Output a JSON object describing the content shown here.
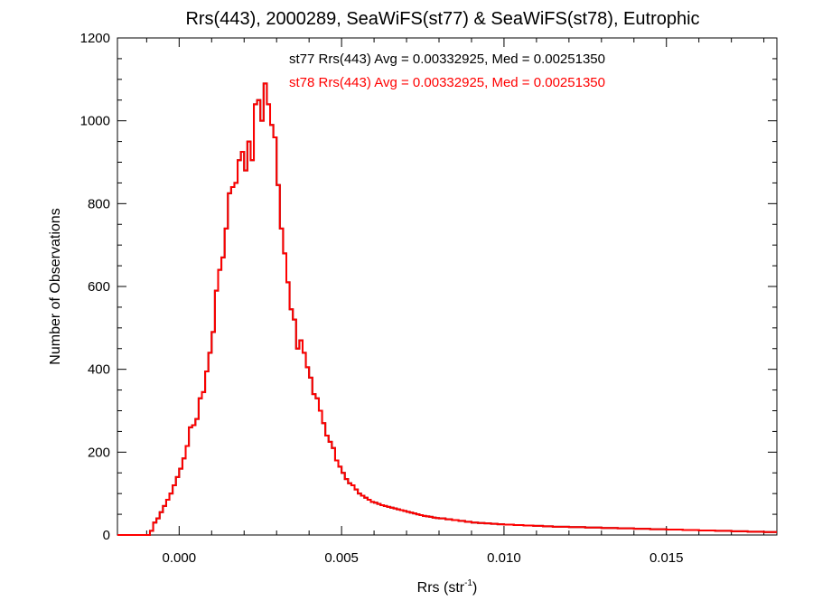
{
  "chart_data": {
    "type": "histogram",
    "title": "Rrs(443), 2000289, SeaWiFS(st77) & SeaWiFS(st78), Eutrophic",
    "xlabel_base": "Rrs (str",
    "xlabel_sup": "-1",
    "xlabel_close": ")",
    "ylabel": "Number of Observations",
    "xlim": [
      -0.0019,
      0.0184
    ],
    "ylim": [
      0,
      1200
    ],
    "xticks": [
      0.0,
      0.005,
      0.01,
      0.015
    ],
    "xtick_labels": [
      "0.000",
      "0.005",
      "0.010",
      "0.015"
    ],
    "yticks": [
      0,
      200,
      400,
      600,
      800,
      1000,
      1200
    ],
    "ytick_labels": [
      "0",
      "200",
      "400",
      "600",
      "800",
      "1000",
      "1200"
    ],
    "annotations": [
      {
        "text": "st77 Rrs(443) Avg = 0.00332925, Med = 0.00251350",
        "color": "#000000"
      },
      {
        "text": "st78 Rrs(443) Avg = 0.00332925, Med = 0.00251350",
        "color": "#ff0000"
      }
    ],
    "series": [
      {
        "name": "st77",
        "color": "#000000",
        "bin_width": 0.0001,
        "points": [
          [
            -0.0019,
            0
          ],
          [
            -0.001,
            0
          ],
          [
            -0.0009,
            10
          ],
          [
            -0.0008,
            30
          ],
          [
            -0.0007,
            40
          ],
          [
            -0.0006,
            55
          ],
          [
            -0.0005,
            70
          ],
          [
            -0.0004,
            85
          ],
          [
            -0.0003,
            100
          ],
          [
            -0.0002,
            120
          ],
          [
            -0.0001,
            140
          ],
          [
            0.0,
            160
          ],
          [
            0.0001,
            185
          ],
          [
            0.0002,
            215
          ],
          [
            0.0003,
            260
          ],
          [
            0.0004,
            265
          ],
          [
            0.0005,
            280
          ],
          [
            0.0006,
            330
          ],
          [
            0.0007,
            345
          ],
          [
            0.0008,
            395
          ],
          [
            0.0009,
            440
          ],
          [
            0.001,
            490
          ],
          [
            0.0011,
            590
          ],
          [
            0.0012,
            640
          ],
          [
            0.0013,
            670
          ],
          [
            0.0014,
            740
          ],
          [
            0.0015,
            825
          ],
          [
            0.0016,
            840
          ],
          [
            0.0017,
            850
          ],
          [
            0.0018,
            905
          ],
          [
            0.0019,
            925
          ],
          [
            0.002,
            880
          ],
          [
            0.0021,
            950
          ],
          [
            0.0022,
            905
          ],
          [
            0.0023,
            1040
          ],
          [
            0.0024,
            1050
          ],
          [
            0.0025,
            1000
          ],
          [
            0.0026,
            1090
          ],
          [
            0.0027,
            1040
          ],
          [
            0.0028,
            990
          ],
          [
            0.0029,
            960
          ],
          [
            0.003,
            845
          ],
          [
            0.0031,
            740
          ],
          [
            0.0032,
            680
          ],
          [
            0.0033,
            610
          ],
          [
            0.0034,
            545
          ],
          [
            0.0035,
            520
          ],
          [
            0.0036,
            450
          ],
          [
            0.0037,
            470
          ],
          [
            0.0038,
            440
          ],
          [
            0.0039,
            405
          ],
          [
            0.004,
            380
          ],
          [
            0.0041,
            340
          ],
          [
            0.0042,
            330
          ],
          [
            0.0043,
            300
          ],
          [
            0.0044,
            270
          ],
          [
            0.0045,
            240
          ],
          [
            0.0046,
            225
          ],
          [
            0.0047,
            210
          ],
          [
            0.0048,
            180
          ],
          [
            0.0049,
            165
          ],
          [
            0.005,
            150
          ],
          [
            0.0051,
            135
          ],
          [
            0.0052,
            125
          ],
          [
            0.0053,
            120
          ],
          [
            0.0054,
            110
          ],
          [
            0.0055,
            100
          ],
          [
            0.0056,
            95
          ],
          [
            0.0057,
            90
          ],
          [
            0.0058,
            85
          ],
          [
            0.0059,
            80
          ],
          [
            0.006,
            78
          ],
          [
            0.0061,
            75
          ],
          [
            0.0062,
            72
          ],
          [
            0.0063,
            70
          ],
          [
            0.0064,
            68
          ],
          [
            0.0065,
            66
          ],
          [
            0.0066,
            64
          ],
          [
            0.0067,
            62
          ],
          [
            0.0068,
            60
          ],
          [
            0.0069,
            58
          ],
          [
            0.007,
            56
          ],
          [
            0.0071,
            54
          ],
          [
            0.0072,
            52
          ],
          [
            0.0073,
            50
          ],
          [
            0.0074,
            48
          ],
          [
            0.0075,
            46
          ],
          [
            0.0076,
            45
          ],
          [
            0.0077,
            44
          ],
          [
            0.0078,
            42
          ],
          [
            0.0079,
            41
          ],
          [
            0.008,
            40
          ],
          [
            0.0082,
            38
          ],
          [
            0.0084,
            36
          ],
          [
            0.0086,
            34
          ],
          [
            0.0088,
            32
          ],
          [
            0.009,
            30
          ],
          [
            0.0092,
            29
          ],
          [
            0.0094,
            28
          ],
          [
            0.0096,
            27
          ],
          [
            0.0098,
            26
          ],
          [
            0.01,
            25
          ],
          [
            0.0103,
            24
          ],
          [
            0.0106,
            23
          ],
          [
            0.0109,
            22
          ],
          [
            0.0112,
            21
          ],
          [
            0.0115,
            20
          ],
          [
            0.012,
            19
          ],
          [
            0.0125,
            18
          ],
          [
            0.013,
            17
          ],
          [
            0.0135,
            16
          ],
          [
            0.014,
            15
          ],
          [
            0.0145,
            14
          ],
          [
            0.015,
            13
          ],
          [
            0.0155,
            12
          ],
          [
            0.016,
            11
          ],
          [
            0.0165,
            10
          ],
          [
            0.017,
            9
          ],
          [
            0.0175,
            8
          ],
          [
            0.018,
            7
          ],
          [
            0.0184,
            7
          ]
        ]
      },
      {
        "name": "st78",
        "color": "#ff0000",
        "bin_width": 0.0001,
        "points": [
          [
            -0.0019,
            0
          ],
          [
            -0.001,
            0
          ],
          [
            -0.0009,
            10
          ],
          [
            -0.0008,
            30
          ],
          [
            -0.0007,
            40
          ],
          [
            -0.0006,
            55
          ],
          [
            -0.0005,
            70
          ],
          [
            -0.0004,
            85
          ],
          [
            -0.0003,
            100
          ],
          [
            -0.0002,
            120
          ],
          [
            -0.0001,
            140
          ],
          [
            0.0,
            160
          ],
          [
            0.0001,
            185
          ],
          [
            0.0002,
            215
          ],
          [
            0.0003,
            260
          ],
          [
            0.0004,
            265
          ],
          [
            0.0005,
            280
          ],
          [
            0.0006,
            330
          ],
          [
            0.0007,
            345
          ],
          [
            0.0008,
            395
          ],
          [
            0.0009,
            440
          ],
          [
            0.001,
            490
          ],
          [
            0.0011,
            590
          ],
          [
            0.0012,
            640
          ],
          [
            0.0013,
            670
          ],
          [
            0.0014,
            740
          ],
          [
            0.0015,
            825
          ],
          [
            0.0016,
            840
          ],
          [
            0.0017,
            850
          ],
          [
            0.0018,
            905
          ],
          [
            0.0019,
            925
          ],
          [
            0.002,
            880
          ],
          [
            0.0021,
            950
          ],
          [
            0.0022,
            905
          ],
          [
            0.0023,
            1040
          ],
          [
            0.0024,
            1050
          ],
          [
            0.0025,
            1000
          ],
          [
            0.0026,
            1090
          ],
          [
            0.0027,
            1040
          ],
          [
            0.0028,
            990
          ],
          [
            0.0029,
            960
          ],
          [
            0.003,
            845
          ],
          [
            0.0031,
            740
          ],
          [
            0.0032,
            680
          ],
          [
            0.0033,
            610
          ],
          [
            0.0034,
            545
          ],
          [
            0.0035,
            520
          ],
          [
            0.0036,
            450
          ],
          [
            0.0037,
            470
          ],
          [
            0.0038,
            440
          ],
          [
            0.0039,
            405
          ],
          [
            0.004,
            380
          ],
          [
            0.0041,
            340
          ],
          [
            0.0042,
            330
          ],
          [
            0.0043,
            300
          ],
          [
            0.0044,
            270
          ],
          [
            0.0045,
            240
          ],
          [
            0.0046,
            225
          ],
          [
            0.0047,
            210
          ],
          [
            0.0048,
            180
          ],
          [
            0.0049,
            165
          ],
          [
            0.005,
            150
          ],
          [
            0.0051,
            135
          ],
          [
            0.0052,
            125
          ],
          [
            0.0053,
            120
          ],
          [
            0.0054,
            110
          ],
          [
            0.0055,
            100
          ],
          [
            0.0056,
            95
          ],
          [
            0.0057,
            90
          ],
          [
            0.0058,
            85
          ],
          [
            0.0059,
            80
          ],
          [
            0.006,
            78
          ],
          [
            0.0061,
            75
          ],
          [
            0.0062,
            72
          ],
          [
            0.0063,
            70
          ],
          [
            0.0064,
            68
          ],
          [
            0.0065,
            66
          ],
          [
            0.0066,
            64
          ],
          [
            0.0067,
            62
          ],
          [
            0.0068,
            60
          ],
          [
            0.0069,
            58
          ],
          [
            0.007,
            56
          ],
          [
            0.0071,
            54
          ],
          [
            0.0072,
            52
          ],
          [
            0.0073,
            50
          ],
          [
            0.0074,
            48
          ],
          [
            0.0075,
            46
          ],
          [
            0.0076,
            45
          ],
          [
            0.0077,
            44
          ],
          [
            0.0078,
            42
          ],
          [
            0.0079,
            41
          ],
          [
            0.008,
            40
          ],
          [
            0.0082,
            38
          ],
          [
            0.0084,
            36
          ],
          [
            0.0086,
            34
          ],
          [
            0.0088,
            32
          ],
          [
            0.009,
            30
          ],
          [
            0.0092,
            29
          ],
          [
            0.0094,
            28
          ],
          [
            0.0096,
            27
          ],
          [
            0.0098,
            26
          ],
          [
            0.01,
            25
          ],
          [
            0.0103,
            24
          ],
          [
            0.0106,
            23
          ],
          [
            0.0109,
            22
          ],
          [
            0.0112,
            21
          ],
          [
            0.0115,
            20
          ],
          [
            0.012,
            19
          ],
          [
            0.0125,
            18
          ],
          [
            0.013,
            17
          ],
          [
            0.0135,
            16
          ],
          [
            0.014,
            15
          ],
          [
            0.0145,
            14
          ],
          [
            0.015,
            13
          ],
          [
            0.0155,
            12
          ],
          [
            0.016,
            11
          ],
          [
            0.0165,
            10
          ],
          [
            0.017,
            9
          ],
          [
            0.0175,
            8
          ],
          [
            0.018,
            7
          ],
          [
            0.0184,
            7
          ]
        ]
      }
    ]
  }
}
